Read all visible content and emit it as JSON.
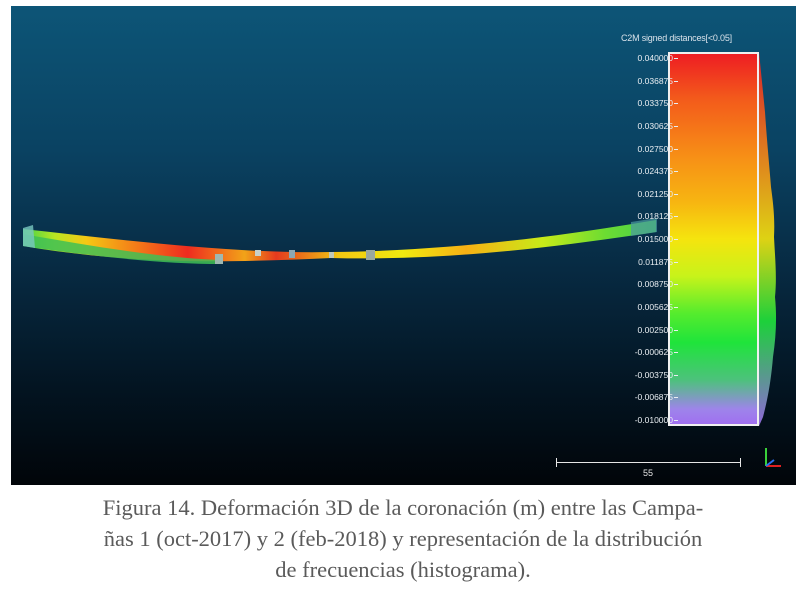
{
  "legend": {
    "title": "C2M signed distances[<0.05]",
    "ticks": [
      "0.040000",
      "0.036875",
      "0.033750",
      "0.030625",
      "0.027500",
      "0.024375",
      "0.021250",
      "0.018125",
      "0.015000",
      "0.011875",
      "0.008750",
      "0.005625",
      "0.002500",
      "-0.000625",
      "-0.003750",
      "-0.006875",
      "-0.010000"
    ],
    "min": -0.01,
    "max": 0.04,
    "colors": {
      "top": "#ee1d23",
      "mid": "#f5e40e",
      "green": "#1fe43b",
      "bottom": "#a070f0"
    }
  },
  "scale": {
    "value": "55"
  },
  "caption": {
    "line1": "Figura 14. Deformación 3D de la coronación (m) entre las Campa-",
    "line2": "ñas 1 (oct-2017) y 2 (feb-2018) y representación de la distribución",
    "line3": "de frecuencias (histograma)."
  }
}
